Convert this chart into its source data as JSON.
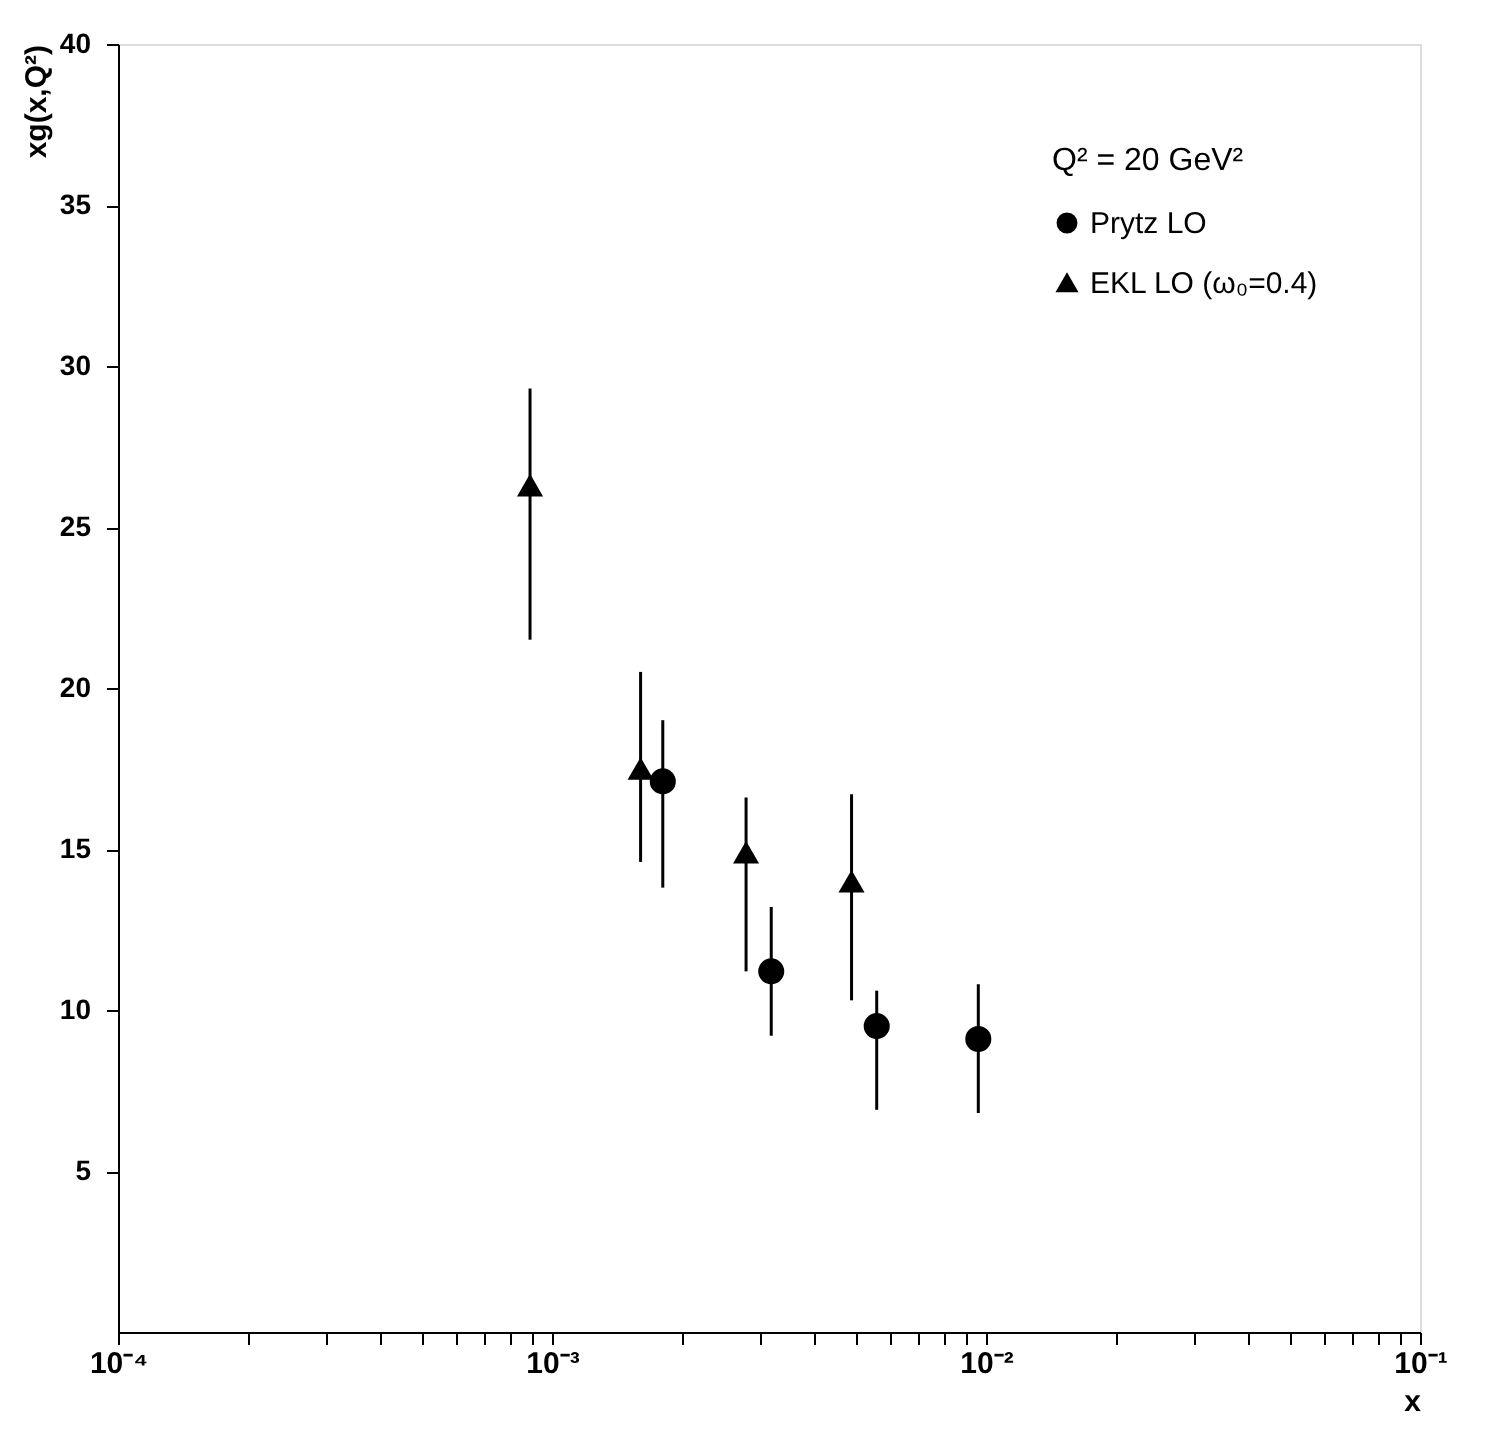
{
  "chart_data": {
    "type": "scatter",
    "xlabel": "x",
    "ylabel": "xg(x,Q²)",
    "legend_title": "Q² = 20 GeV²",
    "legend": "top right",
    "log": "x",
    "grid": false,
    "xlim": [
      0.0001,
      0.1
    ],
    "ylim": [
      0,
      40
    ],
    "xticks": [
      {
        "value": 0.0001,
        "label": "10⁻⁴"
      },
      {
        "value": 0.0002,
        "label": null
      },
      {
        "value": 0.0003,
        "label": null
      },
      {
        "value": 0.0004,
        "label": null
      },
      {
        "value": 0.0005,
        "label": null
      },
      {
        "value": 0.0006,
        "label": null
      },
      {
        "value": 0.0007,
        "label": null
      },
      {
        "value": 0.0008,
        "label": null
      },
      {
        "value": 0.0009,
        "label": null
      },
      {
        "value": 0.001,
        "label": "10⁻³"
      },
      {
        "value": 0.002,
        "label": null
      },
      {
        "value": 0.003,
        "label": null
      },
      {
        "value": 0.004,
        "label": null
      },
      {
        "value": 0.005,
        "label": null
      },
      {
        "value": 0.006,
        "label": null
      },
      {
        "value": 0.007,
        "label": null
      },
      {
        "value": 0.008,
        "label": null
      },
      {
        "value": 0.009,
        "label": null
      },
      {
        "value": 0.01,
        "label": "10⁻²"
      },
      {
        "value": 0.02,
        "label": null
      },
      {
        "value": 0.03,
        "label": null
      },
      {
        "value": 0.04,
        "label": null
      },
      {
        "value": 0.05,
        "label": null
      },
      {
        "value": 0.06,
        "label": null
      },
      {
        "value": 0.07,
        "label": null
      },
      {
        "value": 0.08,
        "label": null
      },
      {
        "value": 0.09,
        "label": null
      },
      {
        "value": 0.1,
        "label": "10⁻¹"
      }
    ],
    "yticks": [
      5,
      10,
      15,
      20,
      25,
      30,
      35,
      40
    ],
    "series": [
      {
        "name": "Prytz LO",
        "color": "#000000",
        "marker": "circle",
        "x": [
          0.0018,
          0.0032,
          0.0056,
          0.0096
        ],
        "values": [
          17.1,
          11.2,
          9.5,
          9.1
        ],
        "errors": [
          [
            13.8,
            19.0
          ],
          [
            9.2,
            13.2
          ],
          [
            6.9,
            10.6
          ],
          [
            6.8,
            10.8
          ]
        ]
      },
      {
        "name": "EKL LO (ω₀=0.4)",
        "color": "#000000",
        "marker": "triangle",
        "x": [
          0.00089,
          0.0016,
          0.0028,
          0.0049
        ],
        "values": [
          26.3,
          17.5,
          14.9,
          14.0
        ],
        "errors": [
          [
            21.5,
            29.3
          ],
          [
            14.6,
            20.5
          ],
          [
            11.2,
            16.6
          ],
          [
            10.3,
            16.7
          ]
        ]
      }
    ]
  }
}
